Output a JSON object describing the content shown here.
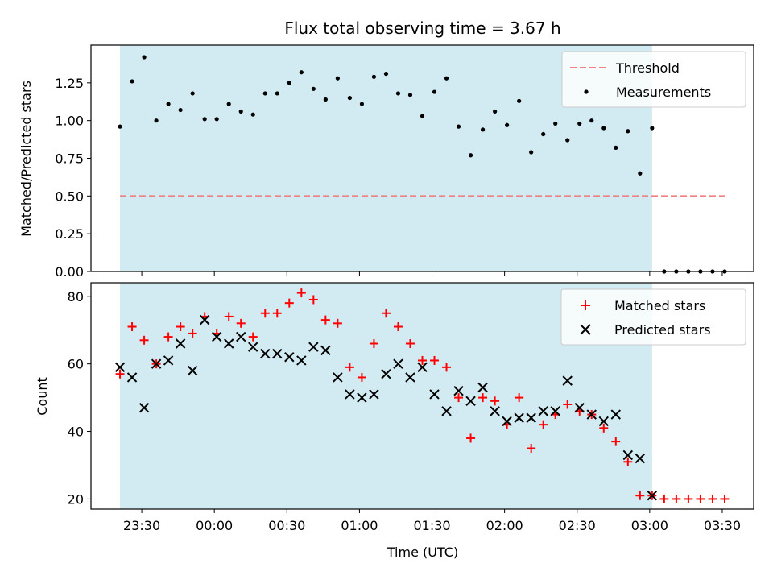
{
  "chart_data": [
    {
      "type": "scatter",
      "title": "Flux total observing time = 3.67 h",
      "xlabel": "",
      "ylabel": "Matched/Predicted stars",
      "ylim": [
        0,
        1.5
      ],
      "yticks": [
        "0.00",
        "0.25",
        "0.50",
        "0.75",
        "1.00",
        "1.25"
      ],
      "ytick_values": [
        0,
        0.25,
        0.5,
        0.75,
        1.0,
        1.25
      ],
      "shaded_interval": [
        "23:21",
        "03:01"
      ],
      "shade_color": "#add8e6",
      "threshold": {
        "name": "Threshold",
        "value": 0.5,
        "x_range": [
          "23:21",
          "03:31"
        ],
        "color": "#f08080",
        "style": "dashed"
      },
      "series": [
        {
          "name": "Measurements",
          "marker": "dot",
          "color": "#000000",
          "x": [
            "23:21",
            "23:26",
            "23:31",
            "23:36",
            "23:41",
            "23:46",
            "23:51",
            "23:56",
            "00:01",
            "00:06",
            "00:11",
            "00:16",
            "00:21",
            "00:26",
            "00:31",
            "00:36",
            "00:41",
            "00:46",
            "00:51",
            "00:56",
            "01:01",
            "01:06",
            "01:11",
            "01:16",
            "01:21",
            "01:26",
            "01:31",
            "01:36",
            "01:41",
            "01:46",
            "01:51",
            "01:56",
            "02:01",
            "02:06",
            "02:11",
            "02:16",
            "02:21",
            "02:26",
            "02:31",
            "02:36",
            "02:41",
            "02:46",
            "02:51",
            "02:56",
            "03:01",
            "03:06",
            "03:11",
            "03:16",
            "03:21",
            "03:26",
            "03:31"
          ],
          "y": [
            0.96,
            1.26,
            1.42,
            1.0,
            1.11,
            1.07,
            1.18,
            1.01,
            1.01,
            1.11,
            1.06,
            1.04,
            1.18,
            1.18,
            1.25,
            1.32,
            1.21,
            1.14,
            1.28,
            1.15,
            1.11,
            1.29,
            1.31,
            1.18,
            1.17,
            1.03,
            1.19,
            1.28,
            0.96,
            0.77,
            0.94,
            1.06,
            0.97,
            1.13,
            0.79,
            0.91,
            0.98,
            0.87,
            0.98,
            1.0,
            0.95,
            0.82,
            0.93,
            0.65,
            0.95,
            0.0,
            0.0,
            0.0,
            0.0,
            0.0,
            0.0
          ]
        }
      ],
      "legend": {
        "placement": "top-right",
        "entries": [
          "Threshold",
          "Measurements"
        ]
      }
    },
    {
      "type": "scatter",
      "title": "",
      "xlabel": "Time (UTC)",
      "ylabel": "Count",
      "ylim": [
        17,
        84
      ],
      "yticks": [
        "20",
        "40",
        "60",
        "80"
      ],
      "ytick_values": [
        20,
        40,
        60,
        80
      ],
      "xlim": [
        "23:09",
        "03:43"
      ],
      "xticks": [
        "23:30",
        "00:00",
        "00:30",
        "01:00",
        "01:30",
        "02:00",
        "02:30",
        "03:00",
        "03:30"
      ],
      "shaded_interval": [
        "23:21",
        "03:01"
      ],
      "shade_color": "#add8e6",
      "series": [
        {
          "name": "Matched stars",
          "marker": "plus",
          "color": "#ff0000",
          "x": [
            "23:21",
            "23:26",
            "23:31",
            "23:36",
            "23:41",
            "23:46",
            "23:51",
            "23:56",
            "00:01",
            "00:06",
            "00:11",
            "00:16",
            "00:21",
            "00:26",
            "00:31",
            "00:36",
            "00:41",
            "00:46",
            "00:51",
            "00:56",
            "01:01",
            "01:06",
            "01:11",
            "01:16",
            "01:21",
            "01:26",
            "01:31",
            "01:36",
            "01:41",
            "01:46",
            "01:51",
            "01:56",
            "02:01",
            "02:06",
            "02:11",
            "02:16",
            "02:21",
            "02:26",
            "02:31",
            "02:36",
            "02:41",
            "02:46",
            "02:51",
            "02:56",
            "03:01",
            "03:06",
            "03:11",
            "03:16",
            "03:21",
            "03:26",
            "03:31"
          ],
          "y": [
            57,
            71,
            67,
            60,
            68,
            71,
            69,
            74,
            69,
            74,
            72,
            68,
            75,
            75,
            78,
            81,
            79,
            73,
            72,
            59,
            56,
            66,
            75,
            71,
            66,
            61,
            61,
            59,
            50,
            38,
            50,
            49,
            42,
            50,
            35,
            42,
            45,
            48,
            46,
            45,
            41,
            37,
            31,
            21,
            21,
            20,
            20,
            20,
            20,
            20,
            20
          ]
        },
        {
          "name": "Predicted stars",
          "marker": "x",
          "color": "#000000",
          "x": [
            "23:21",
            "23:26",
            "23:31",
            "23:36",
            "23:41",
            "23:46",
            "23:51",
            "23:56",
            "00:01",
            "00:06",
            "00:11",
            "00:16",
            "00:21",
            "00:26",
            "00:31",
            "00:36",
            "00:41",
            "00:46",
            "00:51",
            "00:56",
            "01:01",
            "01:06",
            "01:11",
            "01:16",
            "01:21",
            "01:26",
            "01:31",
            "01:36",
            "01:41",
            "01:46",
            "01:51",
            "01:56",
            "02:01",
            "02:06",
            "02:11",
            "02:16",
            "02:21",
            "02:26",
            "02:31",
            "02:36",
            "02:41",
            "02:46",
            "02:51",
            "02:56",
            "03:01"
          ],
          "y": [
            59,
            56,
            47,
            60,
            61,
            66,
            58,
            73,
            68,
            66,
            68,
            65,
            63,
            63,
            62,
            61,
            65,
            64,
            56,
            51,
            50,
            51,
            57,
            60,
            56,
            59,
            51,
            46,
            52,
            49,
            53,
            46,
            43,
            44,
            44,
            46,
            46,
            55,
            47,
            45,
            43,
            45,
            33,
            32,
            21
          ]
        }
      ],
      "legend": {
        "placement": "top-right",
        "entries": [
          "Matched stars",
          "Predicted stars"
        ]
      }
    }
  ]
}
